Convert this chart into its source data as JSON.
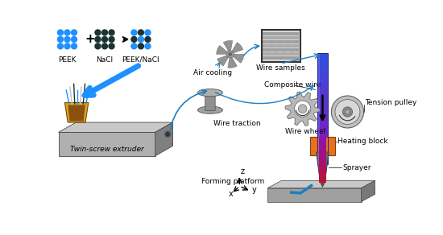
{
  "bg_color": "#ffffff",
  "peek_color": "#1e90ff",
  "nacl_color": "#1a3333",
  "arrow_color": "#1e7fbf",
  "blue_tube_top": "#3050e0",
  "blue_tube_bot": "#8020a0",
  "orange_block": "#e87020",
  "gray_nozzle": "#707070",
  "gear_color": "#b8b8b8",
  "extruder_top": "#c8c8c8",
  "extruder_front": "#b0b0b0",
  "extruder_side": "#808080",
  "hopper_gold": "#d4a820",
  "hopper_dark": "#8B5010",
  "platform_top": "#c8c8c8",
  "platform_front": "#a0a0a0",
  "platform_side": "#787878",
  "mix_pattern": [
    1,
    0,
    1,
    0,
    1,
    0,
    1,
    0,
    1
  ],
  "labels": {
    "PEEK": "PEEK",
    "NaCl": "NaCl",
    "PEEK_NaCl": "PEEK/NaCl",
    "twin_screw": "Twin-screw extruder",
    "wire_traction": "Wire traction",
    "air_cooling": "Air cooling",
    "wire_samples": "Wire samples",
    "wire_wheel": "Wire wheel",
    "tension_pulley": "Tension pulley",
    "composite_wire": "Composite wire",
    "heating_block": "Heating block",
    "forming_platform": "Forming platform",
    "sprayer": "Sprayer"
  }
}
